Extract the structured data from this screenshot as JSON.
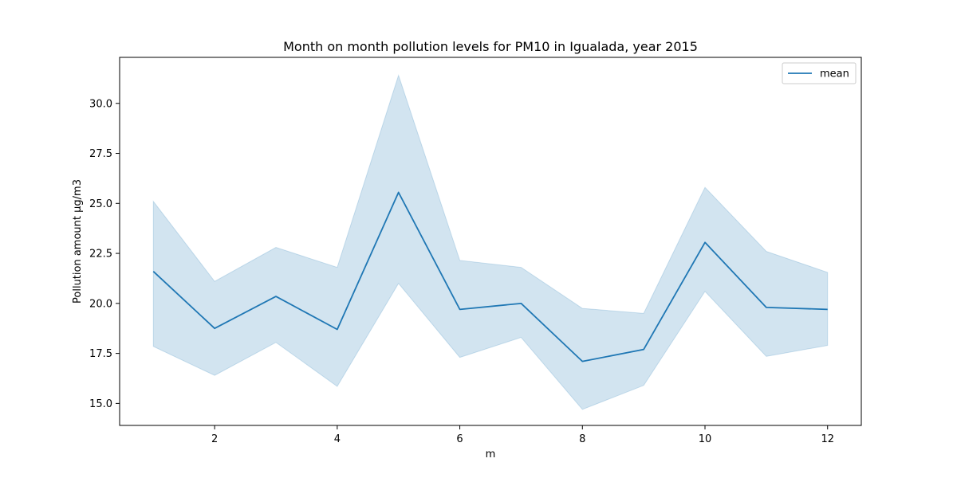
{
  "chart_data": {
    "type": "line",
    "title": "Month on month pollution levels for PM10 in Igualada, year 2015",
    "xlabel": "m",
    "ylabel": "Pollution amount µg/m3",
    "x": [
      1,
      2,
      3,
      4,
      5,
      6,
      7,
      8,
      9,
      10,
      11,
      12
    ],
    "series": [
      {
        "name": "mean",
        "values": [
          21.6,
          18.75,
          20.35,
          18.7,
          25.55,
          19.7,
          20.0,
          17.1,
          17.7,
          23.05,
          19.8,
          19.7
        ],
        "band_lower": [
          17.85,
          16.4,
          18.05,
          15.85,
          21.0,
          17.3,
          18.3,
          14.7,
          15.9,
          20.6,
          17.35,
          17.9
        ],
        "band_upper": [
          25.1,
          21.1,
          22.8,
          21.8,
          31.4,
          22.15,
          21.8,
          19.75,
          19.5,
          25.8,
          22.6,
          21.55
        ]
      }
    ],
    "xlim": [
      0.45,
      12.55
    ],
    "ylim": [
      13.9,
      32.3
    ],
    "xticks": [
      2,
      4,
      6,
      8,
      10,
      12
    ],
    "xtick_labels": [
      "2",
      "4",
      "6",
      "8",
      "10",
      "12"
    ],
    "yticks": [
      15.0,
      17.5,
      20.0,
      22.5,
      25.0,
      27.5,
      30.0
    ],
    "ytick_labels": [
      "15.0",
      "17.5",
      "20.0",
      "22.5",
      "25.0",
      "27.5",
      "30.0"
    ],
    "grid": false,
    "legend_position": "top-right",
    "colors": {
      "line": "#1f77b4",
      "band": "#1f77b4"
    }
  }
}
